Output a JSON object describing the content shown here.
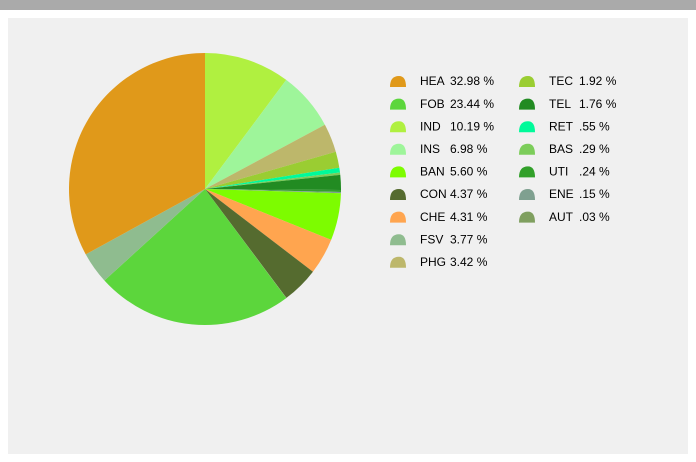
{
  "chart_data": {
    "type": "pie",
    "categories": [
      "HEA",
      "FOB",
      "IND",
      "INS",
      "BAN",
      "CON",
      "CHE",
      "FSV",
      "PHG",
      "TEC",
      "TEL",
      "RET",
      "BAS",
      "UTI",
      "ENE",
      "AUT"
    ],
    "values": [
      32.98,
      23.44,
      10.19,
      6.98,
      5.6,
      4.37,
      4.31,
      3.77,
      3.42,
      1.92,
      1.76,
      0.55,
      0.29,
      0.24,
      0.15,
      0.03
    ],
    "value_labels": [
      "32.98 %",
      "23.44 %",
      "10.19 %",
      "6.98 %",
      "5.60 %",
      "4.37 %",
      "4.31 %",
      "3.77 %",
      "3.42 %",
      "1.92 %",
      "1.76 %",
      ".55 %",
      ".29 %",
      ".24 %",
      ".15 %",
      ".03 %"
    ],
    "colors": [
      "#e0991a",
      "#5cd63c",
      "#b0f040",
      "#9ef59a",
      "#7dfc00",
      "#556b2f",
      "#ffa54f",
      "#8fbc8f",
      "#bdb76b",
      "#9acd32",
      "#228b22",
      "#00fa9a",
      "#7ccd5a",
      "#32a02a",
      "#7fa090",
      "#7f9f5f"
    ]
  }
}
